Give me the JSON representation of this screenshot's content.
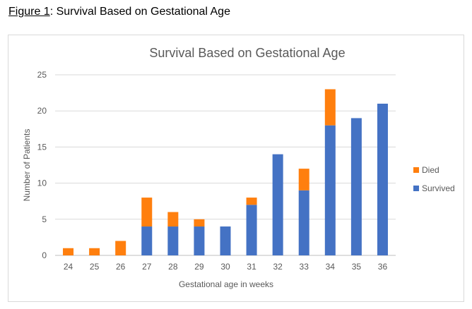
{
  "caption": {
    "figure_label": "Figure 1",
    "rest": ": Survival Based on Gestational Age"
  },
  "chart_data": {
    "type": "bar",
    "stacked": true,
    "title": "Survival Based on Gestational Age",
    "xlabel": "Gestational age in weeks",
    "ylabel": "Number of Patients",
    "ylim": [
      0,
      25
    ],
    "yticks": [
      0,
      5,
      10,
      15,
      20,
      25
    ],
    "grid": true,
    "legend_position": "right",
    "categories": [
      "24",
      "25",
      "26",
      "27",
      "28",
      "29",
      "30",
      "31",
      "32",
      "33",
      "34",
      "35",
      "36"
    ],
    "series": [
      {
        "name": "Survived",
        "color": "#4472c4",
        "values": [
          0,
          0,
          0,
          4,
          4,
          4,
          4,
          7,
          14,
          9,
          18,
          19,
          21
        ]
      },
      {
        "name": "Died",
        "color": "#ff7f0e",
        "values": [
          1,
          1,
          2,
          4,
          2,
          1,
          0,
          1,
          0,
          3,
          5,
          0,
          0
        ]
      }
    ],
    "legend_order": [
      "Died",
      "Survived"
    ]
  }
}
